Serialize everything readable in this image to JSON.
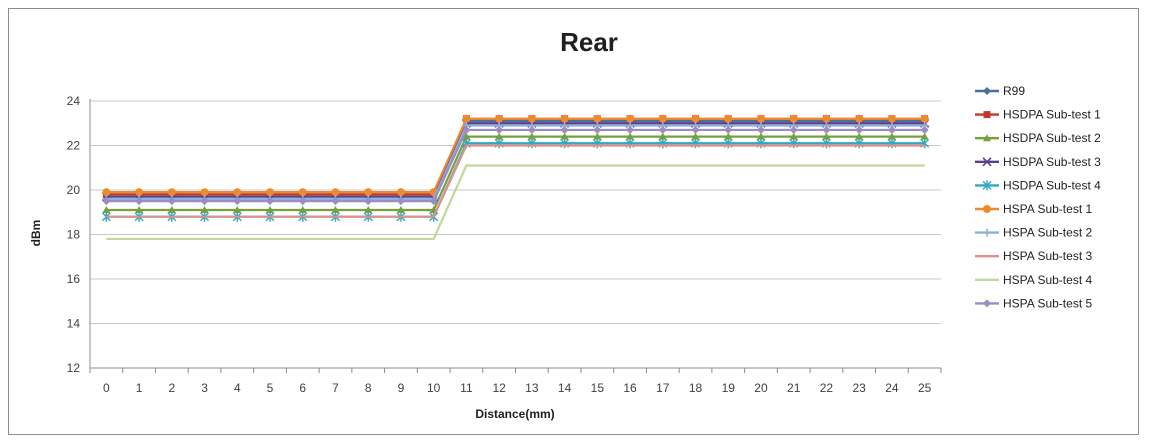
{
  "chart_data": {
    "type": "line",
    "title": "Rear",
    "xlabel": "Distance(mm)",
    "ylabel": "dBm",
    "x": [
      "0",
      "1",
      "2",
      "3",
      "4",
      "5",
      "6",
      "7",
      "8",
      "9",
      "10",
      "11",
      "12",
      "13",
      "14",
      "15",
      "16",
      "17",
      "18",
      "19",
      "20",
      "21",
      "22",
      "23",
      "24",
      "25"
    ],
    "ylim": [
      12,
      24
    ],
    "yticks": [
      12,
      14,
      16,
      18,
      20,
      22,
      24
    ],
    "grid": "horizontal",
    "legend_position": "right",
    "series": [
      {
        "name": "R99",
        "color": "#4a6f9c",
        "marker": "diamond",
        "values": [
          19.9,
          19.9,
          19.9,
          19.9,
          19.9,
          19.9,
          19.9,
          19.9,
          19.9,
          19.9,
          19.9,
          23.1,
          23.1,
          23.1,
          23.1,
          23.1,
          23.1,
          23.1,
          23.1,
          23.1,
          23.1,
          23.1,
          23.1,
          23.1,
          23.1,
          23.1
        ]
      },
      {
        "name": "HSDPA Sub-test 1",
        "color": "#c0392b",
        "marker": "square",
        "values": [
          19.8,
          19.8,
          19.8,
          19.8,
          19.8,
          19.8,
          19.8,
          19.8,
          19.8,
          19.8,
          19.8,
          23.2,
          23.2,
          23.2,
          23.2,
          23.2,
          23.2,
          23.2,
          23.2,
          23.2,
          23.2,
          23.2,
          23.2,
          23.2,
          23.2,
          23.2
        ]
      },
      {
        "name": "HSDPA Sub-test 2",
        "color": "#77a03b",
        "marker": "triangle",
        "values": [
          19.1,
          19.1,
          19.1,
          19.1,
          19.1,
          19.1,
          19.1,
          19.1,
          19.1,
          19.1,
          19.1,
          22.4,
          22.4,
          22.4,
          22.4,
          22.4,
          22.4,
          22.4,
          22.4,
          22.4,
          22.4,
          22.4,
          22.4,
          22.4,
          22.4,
          22.4
        ]
      },
      {
        "name": "HSDPA Sub-test 3",
        "color": "#5b3f8f",
        "marker": "x",
        "values": [
          19.7,
          19.7,
          19.7,
          19.7,
          19.7,
          19.7,
          19.7,
          19.7,
          19.7,
          19.7,
          19.7,
          23.0,
          23.0,
          23.0,
          23.0,
          23.0,
          23.0,
          23.0,
          23.0,
          23.0,
          23.0,
          23.0,
          23.0,
          23.0,
          23.0,
          23.0
        ]
      },
      {
        "name": "HSDPA Sub-test 4",
        "color": "#2fa8c0",
        "marker": "star",
        "values": [
          18.8,
          18.8,
          18.8,
          18.8,
          18.8,
          18.8,
          18.8,
          18.8,
          18.8,
          18.8,
          18.8,
          22.1,
          22.1,
          22.1,
          22.1,
          22.1,
          22.1,
          22.1,
          22.1,
          22.1,
          22.1,
          22.1,
          22.1,
          22.1,
          22.1,
          22.1
        ]
      },
      {
        "name": "HSPA Sub-test 1",
        "color": "#ee8a2b",
        "marker": "circle",
        "values": [
          19.9,
          19.9,
          19.9,
          19.9,
          19.9,
          19.9,
          19.9,
          19.9,
          19.9,
          19.9,
          19.9,
          23.2,
          23.2,
          23.2,
          23.2,
          23.2,
          23.2,
          23.2,
          23.2,
          23.2,
          23.2,
          23.2,
          23.2,
          23.2,
          23.2,
          23.2
        ]
      },
      {
        "name": "HSPA Sub-test 2",
        "color": "#8fb0d6",
        "marker": "plus",
        "values": [
          19.6,
          19.6,
          19.6,
          19.6,
          19.6,
          19.6,
          19.6,
          19.6,
          19.6,
          19.6,
          19.6,
          22.9,
          22.9,
          22.9,
          22.9,
          22.9,
          22.9,
          22.9,
          22.9,
          22.9,
          22.9,
          22.9,
          22.9,
          22.9,
          22.9,
          22.9
        ]
      },
      {
        "name": "HSPA Sub-test 3",
        "color": "#e0908a",
        "marker": "none",
        "values": [
          18.8,
          18.8,
          18.8,
          18.8,
          18.8,
          18.8,
          18.8,
          18.8,
          18.8,
          18.8,
          18.8,
          22.0,
          22.0,
          22.0,
          22.0,
          22.0,
          22.0,
          22.0,
          22.0,
          22.0,
          22.0,
          22.0,
          22.0,
          22.0,
          22.0,
          22.0
        ]
      },
      {
        "name": "HSPA Sub-test 4",
        "color": "#c2d89a",
        "marker": "none",
        "values": [
          17.8,
          17.8,
          17.8,
          17.8,
          17.8,
          17.8,
          17.8,
          17.8,
          17.8,
          17.8,
          17.8,
          21.1,
          21.1,
          21.1,
          21.1,
          21.1,
          21.1,
          21.1,
          21.1,
          21.1,
          21.1,
          21.1,
          21.1,
          21.1,
          21.1,
          21.1
        ]
      },
      {
        "name": "HSPA Sub-test 5",
        "color": "#9a8cc4",
        "marker": "diamond",
        "values": [
          19.5,
          19.5,
          19.5,
          19.5,
          19.5,
          19.5,
          19.5,
          19.5,
          19.5,
          19.5,
          19.5,
          22.7,
          22.7,
          22.7,
          22.7,
          22.7,
          22.7,
          22.7,
          22.7,
          22.7,
          22.7,
          22.7,
          22.7,
          22.7,
          22.7,
          22.7
        ]
      }
    ]
  }
}
